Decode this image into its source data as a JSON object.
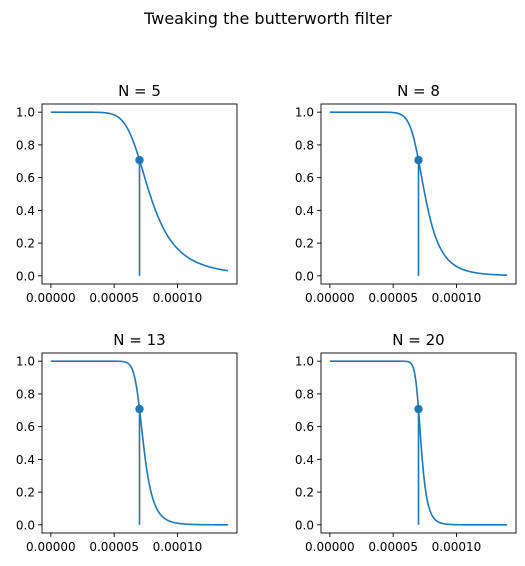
{
  "figure": {
    "title": "Tweaking the butterworth filter"
  },
  "chart_data": [
    {
      "type": "line",
      "title": "N = 5",
      "order": 5,
      "cutoff": 7e-05,
      "marker": {
        "x": 7e-05,
        "y": 0.7071
      },
      "xlim": [
        0.0,
        0.00014
      ],
      "ylim": [
        0.0,
        1.0
      ],
      "xticks": [
        0.0,
        5e-05,
        0.0001
      ],
      "xtick_labels": [
        "0.00000",
        "0.00005",
        "0.00010"
      ],
      "yticks": [
        0.0,
        0.2,
        0.4,
        0.6,
        0.8,
        1.0
      ],
      "ytick_labels": [
        "0.0",
        "0.2",
        "0.4",
        "0.6",
        "0.8",
        "1.0"
      ],
      "color": "#1f77b4"
    },
    {
      "type": "line",
      "title": "N = 8",
      "order": 8,
      "cutoff": 7e-05,
      "marker": {
        "x": 7e-05,
        "y": 0.7071
      },
      "xlim": [
        0.0,
        0.00014
      ],
      "ylim": [
        0.0,
        1.0
      ],
      "xticks": [
        0.0,
        5e-05,
        0.0001
      ],
      "xtick_labels": [
        "0.00000",
        "0.00005",
        "0.00010"
      ],
      "yticks": [
        0.0,
        0.2,
        0.4,
        0.6,
        0.8,
        1.0
      ],
      "ytick_labels": [
        "0.0",
        "0.2",
        "0.4",
        "0.6",
        "0.8",
        "1.0"
      ],
      "color": "#1f77b4"
    },
    {
      "type": "line",
      "title": "N = 13",
      "order": 13,
      "cutoff": 7e-05,
      "marker": {
        "x": 7e-05,
        "y": 0.7071
      },
      "xlim": [
        0.0,
        0.00014
      ],
      "ylim": [
        0.0,
        1.0
      ],
      "xticks": [
        0.0,
        5e-05,
        0.0001
      ],
      "xtick_labels": [
        "0.00000",
        "0.00005",
        "0.00010"
      ],
      "yticks": [
        0.0,
        0.2,
        0.4,
        0.6,
        0.8,
        1.0
      ],
      "ytick_labels": [
        "0.0",
        "0.2",
        "0.4",
        "0.6",
        "0.8",
        "1.0"
      ],
      "color": "#1f77b4"
    },
    {
      "type": "line",
      "title": "N = 20",
      "order": 20,
      "cutoff": 7e-05,
      "marker": {
        "x": 7e-05,
        "y": 0.7071
      },
      "xlim": [
        0.0,
        0.00014
      ],
      "ylim": [
        0.0,
        1.0
      ],
      "xticks": [
        0.0,
        5e-05,
        0.0001
      ],
      "xtick_labels": [
        "0.00000",
        "0.00005",
        "0.00010"
      ],
      "yticks": [
        0.0,
        0.2,
        0.4,
        0.6,
        0.8,
        1.0
      ],
      "ytick_labels": [
        "0.0",
        "0.2",
        "0.4",
        "0.6",
        "0.8",
        "1.0"
      ],
      "color": "#1f77b4"
    }
  ]
}
